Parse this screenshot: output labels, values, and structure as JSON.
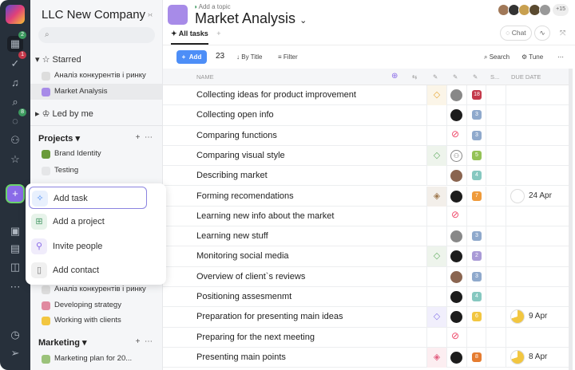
{
  "rail": {
    "badges": {
      "home": "2",
      "tasks": "1",
      "chat": "8"
    }
  },
  "sidebar": {
    "company": "LLC New Company",
    "starred": "Starred",
    "starred_items": [
      "Аналіз конкурентів і ринку",
      "Market Analysis"
    ],
    "led_by_me": "Led by me",
    "projects": "Projects",
    "project_items": [
      "Brand Identity",
      "Testing",
      "Аналіз конкурентів і ринку",
      "Developing strategy",
      "Working with clients"
    ],
    "marketing": "Marketing",
    "marketing_items": [
      "Marketing plan for 20..."
    ]
  },
  "menu": {
    "items": [
      "Add task",
      "Add a project",
      "Invite people",
      "Add contact"
    ]
  },
  "header": {
    "topic": "Add a topic",
    "title": "Market Analysis",
    "more_members": "+15",
    "tab": "All tasks",
    "chat": "Chat"
  },
  "toolbar": {
    "add": "Add",
    "count": "23",
    "sort": "By Title",
    "filter": "Filter",
    "search": "Search",
    "tune": "Tune"
  },
  "columns": {
    "name": "NAME",
    "s": "S...",
    "due": "DUE DATE"
  },
  "tasks": [
    {
      "name": "Collecting ideas for product improvement",
      "status": "◇",
      "status_color": "#e8a93a",
      "status_bg": "#fbf5e8",
      "assignee": "#888",
      "priority": "18",
      "pcolor": "#c4384a"
    },
    {
      "name": "Collecting open info",
      "assignee": "#1c1c1c",
      "priority": "3",
      "pcolor": "#8fa9cc"
    },
    {
      "name": "Comparing functions",
      "assignee": "none",
      "priority": "3",
      "pcolor": "#8fa9cc"
    },
    {
      "name": "Comparing visual style",
      "status": "◇",
      "status_color": "#6ab06a",
      "status_bg": "#eef4ec",
      "assignee": "group",
      "priority": "5",
      "pcolor": "#94c256"
    },
    {
      "name": "Describing market",
      "assignee": "#8a6550",
      "priority": "4",
      "pcolor": "#86c8c0"
    },
    {
      "name": "Forming recomendations",
      "status": "◈",
      "status_color": "#a07a50",
      "status_bg": "#f3efea",
      "assignee": "#1c1c1c",
      "priority": "7",
      "pcolor": "#ef9a3a",
      "due": "24 Apr"
    },
    {
      "name": "Learning new info about the market",
      "assignee": "none"
    },
    {
      "name": "Learning new stuff",
      "assignee": "#888",
      "priority": "3",
      "pcolor": "#8fa9cc"
    },
    {
      "name": "Monitoring social media",
      "status": "◇",
      "status_color": "#6ab06a",
      "status_bg": "#eef4ec",
      "assignee": "#1c1c1c",
      "priority": "2",
      "pcolor": "#a99ad6"
    },
    {
      "name": "Overview of client`s reviews",
      "assignee": "#8a6550",
      "priority": "3",
      "pcolor": "#8fa9cc"
    },
    {
      "name": "Positioning assesmenmt",
      "assignee": "#1c1c1c",
      "priority": "4",
      "pcolor": "#86c8c0"
    },
    {
      "name": "Preparation for presenting main ideas",
      "status": "◇",
      "status_color": "#8a7ae8",
      "status_bg": "#f1effc",
      "assignee": "#1c1c1c",
      "priority": "6",
      "pcolor": "#f2c640",
      "due": "9 Apr"
    },
    {
      "name": "Preparing for the next meeting",
      "assignee": "none"
    },
    {
      "name": "Presenting main points",
      "status": "◈",
      "status_color": "#e26080",
      "status_bg": "#fceef1",
      "assignee": "#1c1c1c",
      "priority": "8",
      "pcolor": "#e57c30",
      "due": "8 Apr"
    }
  ]
}
